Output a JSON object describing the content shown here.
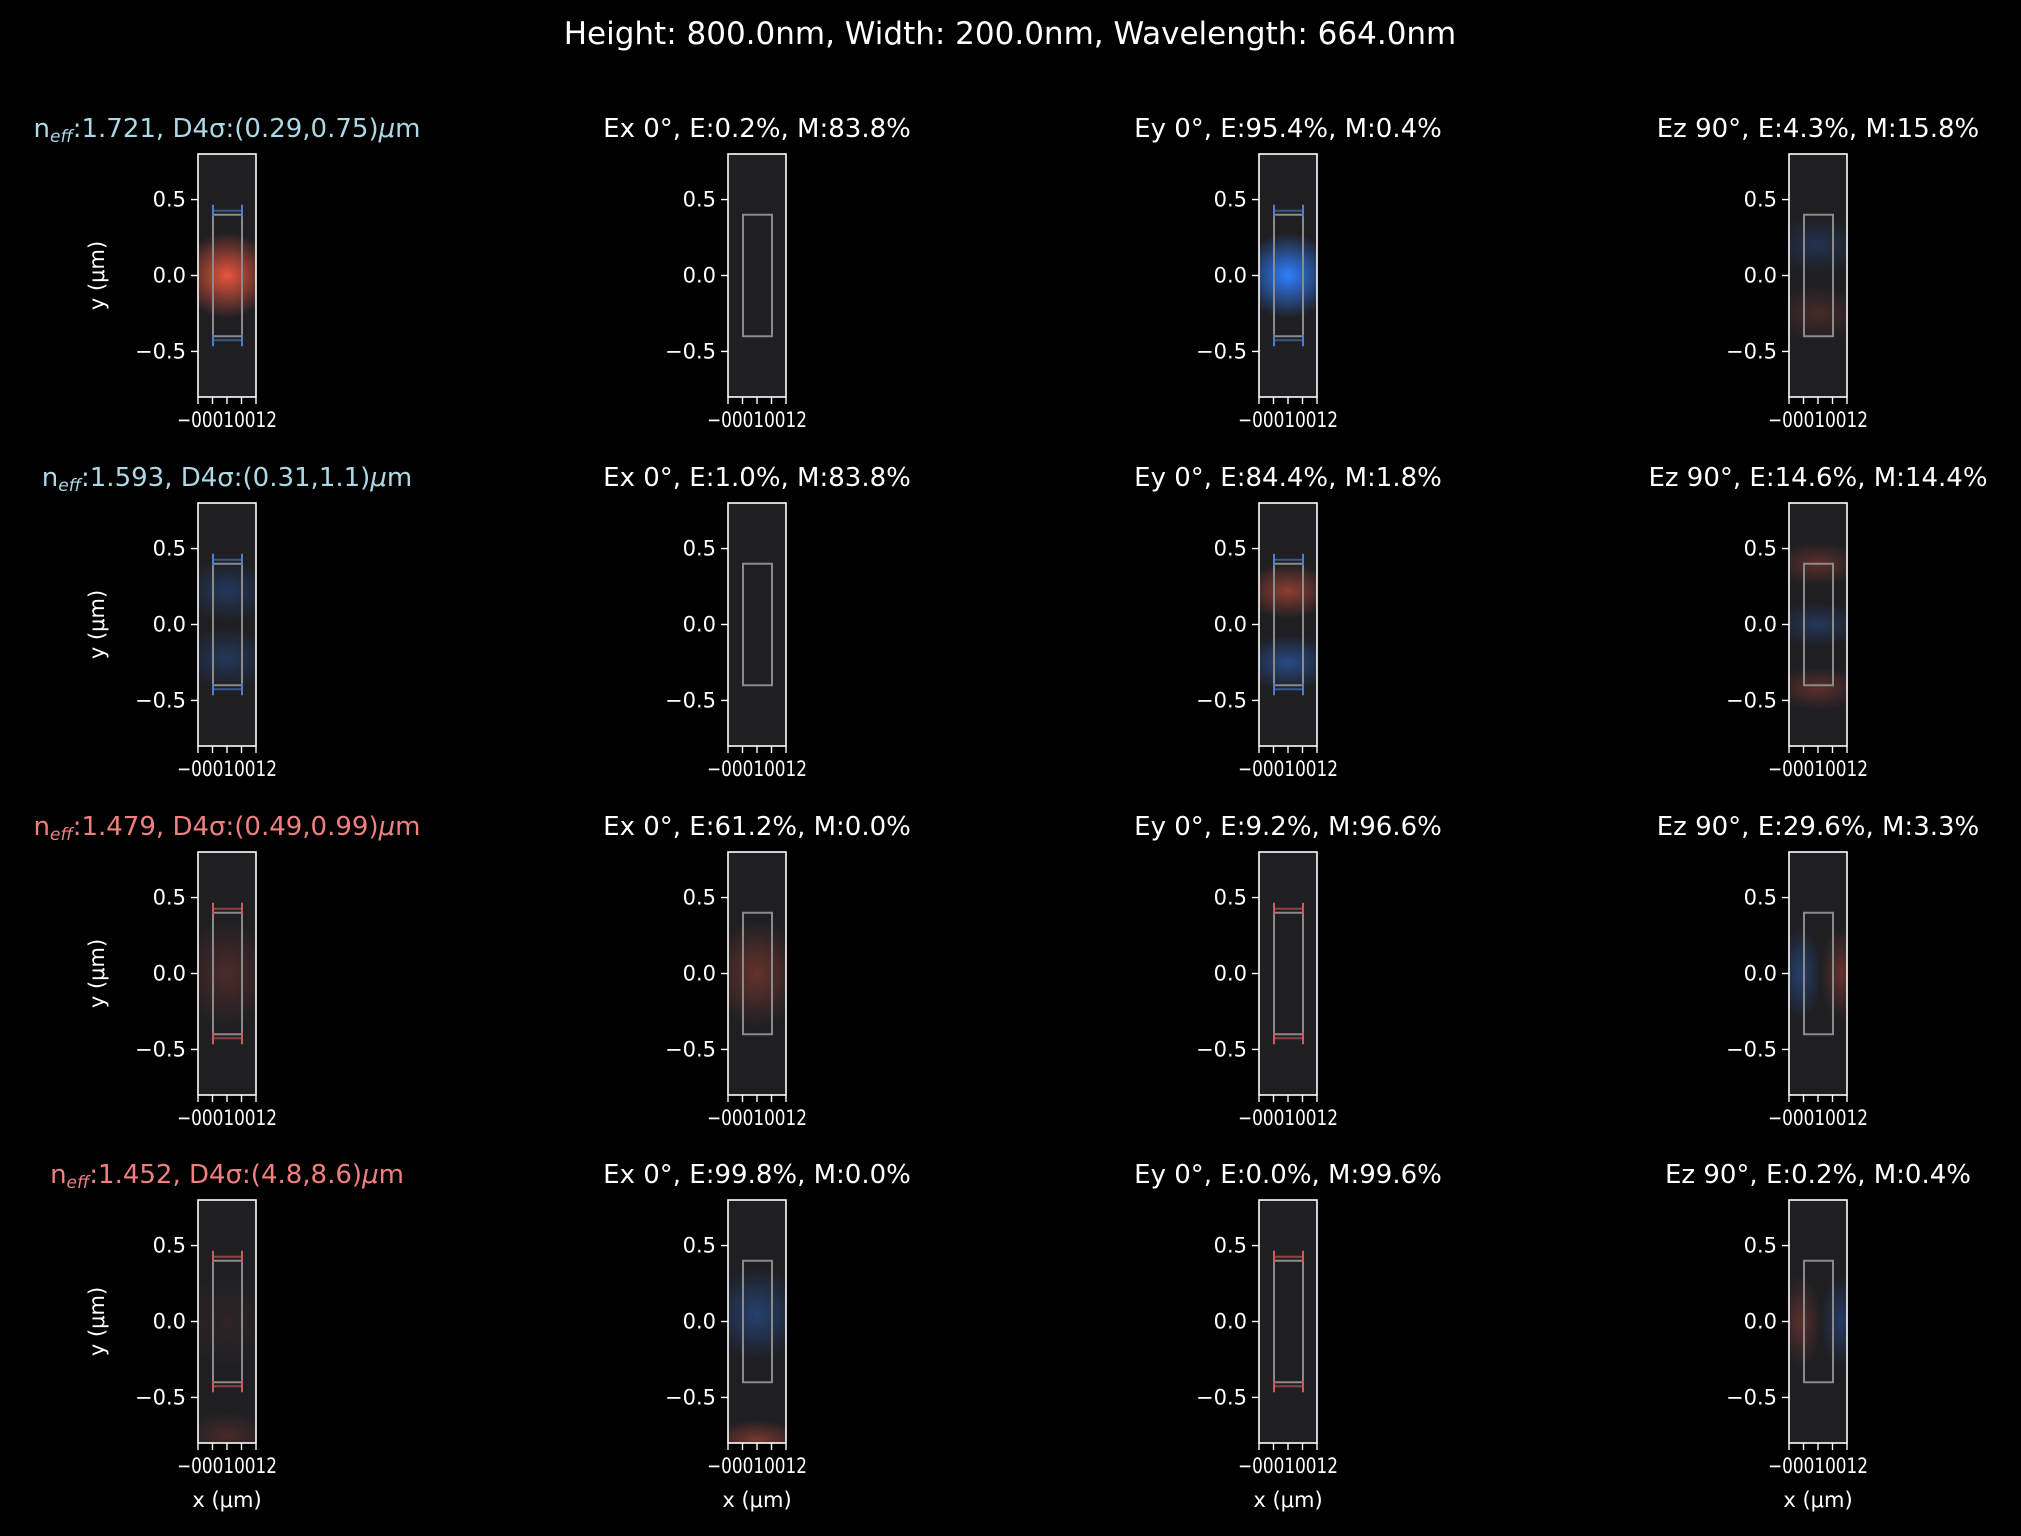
{
  "figure": {
    "suptitle": "Height: 800.0nm, Width: 200.0nm, Wavelength: 664.0nm",
    "xlabel": "x (μm)",
    "ylabel": "y (μm)",
    "colors": {
      "background": "#000000",
      "panel": "#1f1f23",
      "te_title": "#add8e6",
      "tm_title": "#f08080",
      "positive": "#e8553c",
      "negative": "#2f7fff",
      "core_outline": "#8a8a8a",
      "axis": "#ffffff"
    }
  },
  "chart_data": {
    "type": "heatmap",
    "xlim": [
      -0.1,
      0.1
    ],
    "ylim": [
      -0.8,
      0.8
    ],
    "xticks": [
      "−0.1",
      "0.0",
      "0.1"
    ],
    "xtick_text": "−00010012",
    "yticks": [
      0.5,
      0.0,
      -0.5
    ],
    "ytick_labels": [
      "0.5",
      "0.0",
      "−0.5"
    ],
    "core": {
      "x": [
        -0.1,
        0.1
      ],
      "y": [
        -0.4,
        0.4
      ]
    },
    "rows": [
      {
        "mode_title_prefix": "n",
        "mode_title_sub": "eff",
        "mode_title_rest": ":1.721, D4σ:(0.29,0.75)",
        "mode_title_unit": "μm",
        "polarization": "te",
        "panels": [
          {
            "component": "|E|",
            "blobs": [
              {
                "y": 0.0,
                "sy": 0.28,
                "sign": 1,
                "amp": 1.0
              }
            ],
            "markers": true
          },
          {
            "component": "Ex",
            "title": "Ex 0°, E:0.2%, M:83.8%",
            "blobs": []
          },
          {
            "component": "Ey",
            "title": "Ey 0°, E:95.4%, M:0.4%",
            "blobs": [
              {
                "y": 0.0,
                "sy": 0.28,
                "sign": -1,
                "amp": 1.0
              }
            ],
            "markers": true
          },
          {
            "component": "Ez",
            "title": "Ez 90°, E:4.3%, M:15.8%",
            "blobs": [
              {
                "y": 0.2,
                "sy": 0.18,
                "sign": -1,
                "amp": 0.2
              },
              {
                "y": -0.25,
                "sy": 0.18,
                "sign": 1,
                "amp": 0.2
              }
            ]
          }
        ]
      },
      {
        "mode_title_prefix": "n",
        "mode_title_sub": "eff",
        "mode_title_rest": ":1.593, D4σ:(0.31,1.1)",
        "mode_title_unit": "μm",
        "polarization": "te",
        "panels": [
          {
            "component": "|E|",
            "blobs": [
              {
                "y": 0.22,
                "sy": 0.2,
                "sign": -1,
                "amp": 0.25
              },
              {
                "y": -0.22,
                "sy": 0.2,
                "sign": -1,
                "amp": 0.25
              }
            ],
            "markers": true
          },
          {
            "component": "Ex",
            "title": "Ex 0°, E:1.0%, M:83.8%",
            "blobs": []
          },
          {
            "component": "Ey",
            "title": "Ey 0°, E:84.4%, M:1.8%",
            "blobs": [
              {
                "y": 0.22,
                "sy": 0.18,
                "sign": 1,
                "amp": 0.55
              },
              {
                "y": -0.25,
                "sy": 0.18,
                "sign": -1,
                "amp": 0.45
              }
            ],
            "markers": true
          },
          {
            "component": "Ez",
            "title": "Ez 90°, E:14.6%, M:14.4%",
            "blobs": [
              {
                "y": 0.4,
                "sy": 0.14,
                "sign": 1,
                "amp": 0.3
              },
              {
                "y": 0.0,
                "sy": 0.14,
                "sign": -1,
                "amp": 0.25
              },
              {
                "y": -0.42,
                "sy": 0.14,
                "sign": 1,
                "amp": 0.3
              }
            ]
          }
        ]
      },
      {
        "mode_title_prefix": "n",
        "mode_title_sub": "eff",
        "mode_title_rest": ":1.479, D4σ:(0.49,0.99)",
        "mode_title_unit": "μm",
        "polarization": "tm",
        "panels": [
          {
            "component": "|E|",
            "blobs": [
              {
                "y": 0.0,
                "sy": 0.35,
                "sign": 1,
                "amp": 0.22
              }
            ],
            "markers": true
          },
          {
            "component": "Ex",
            "title": "Ex 0°, E:61.2%, M:0.0%",
            "blobs": [
              {
                "y": 0.0,
                "sy": 0.35,
                "sign": 1,
                "amp": 0.35
              }
            ]
          },
          {
            "component": "Ey",
            "title": "Ey 0°, E:9.2%, M:96.6%",
            "blobs": [],
            "markers": true
          },
          {
            "component": "Ez",
            "title": "Ez 90°, E:29.6%, M:3.3%",
            "blobs": [
              {
                "x": -0.06,
                "y": 0.0,
                "sy": 0.3,
                "sign": -1,
                "amp": 0.35
              },
              {
                "x": 0.08,
                "y": 0.0,
                "sy": 0.3,
                "sign": 1,
                "amp": 0.35
              }
            ]
          }
        ]
      },
      {
        "mode_title_prefix": "n",
        "mode_title_sub": "eff",
        "mode_title_rest": ":1.452, D4σ:(4.8,8.6)",
        "mode_title_unit": "μm",
        "polarization": "tm",
        "panels": [
          {
            "component": "|E|",
            "blobs": [
              {
                "y": -0.75,
                "sy": 0.15,
                "sign": 1,
                "amp": 0.2
              },
              {
                "y": 0.0,
                "sy": 0.3,
                "sign": 1,
                "amp": 0.08
              }
            ],
            "markers": true
          },
          {
            "component": "Ex",
            "title": "Ex 0°, E:99.8%, M:0.0%",
            "blobs": [
              {
                "y": 0.05,
                "sy": 0.3,
                "sign": -1,
                "amp": 0.35
              },
              {
                "y": -0.78,
                "sy": 0.13,
                "sign": 1,
                "amp": 0.45
              }
            ]
          },
          {
            "component": "Ey",
            "title": "Ey 0°, E:0.0%, M:99.6%",
            "blobs": [],
            "markers": true
          },
          {
            "component": "Ez",
            "title": "Ez 90°, E:0.2%, M:0.4%",
            "blobs": [
              {
                "x": -0.06,
                "y": 0.0,
                "sy": 0.3,
                "sign": 1,
                "amp": 0.3
              },
              {
                "x": 0.08,
                "y": 0.0,
                "sy": 0.3,
                "sign": -1,
                "amp": 0.3
              }
            ]
          }
        ]
      }
    ]
  }
}
